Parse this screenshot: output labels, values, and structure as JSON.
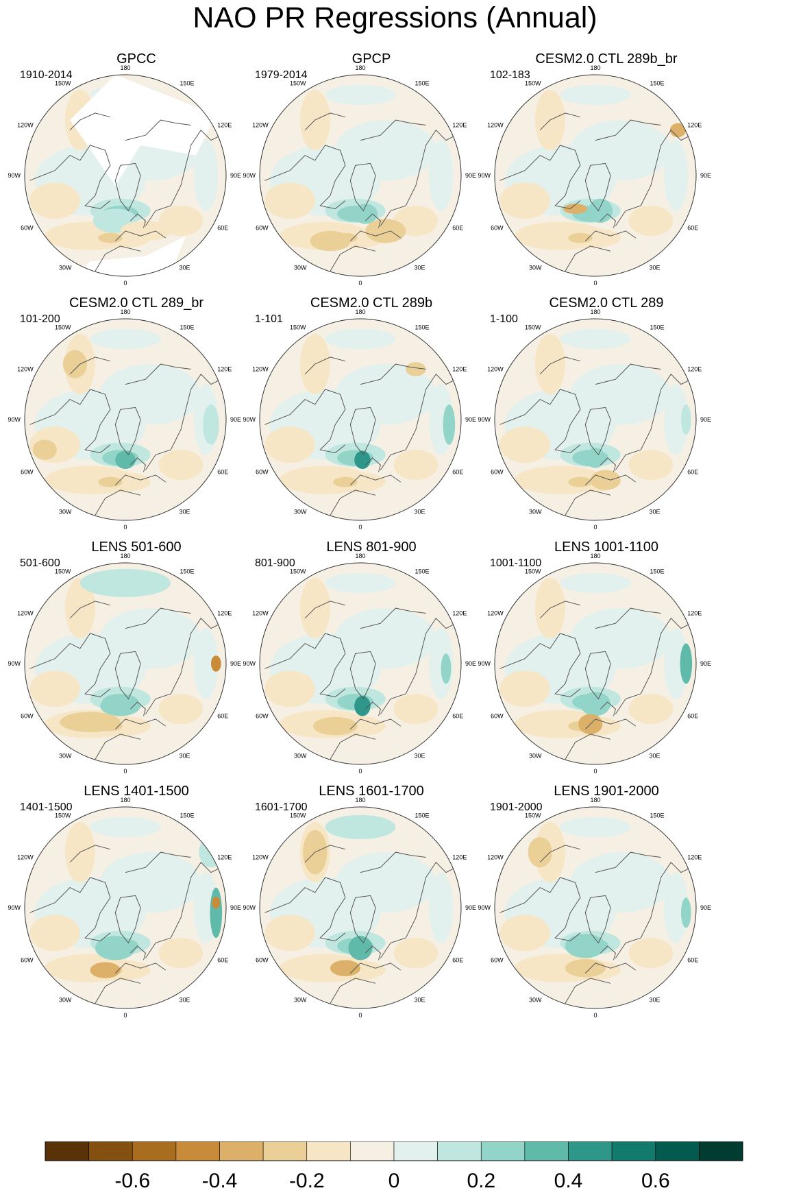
{
  "title": "NAO PR Regressions (Annual)",
  "panels": [
    {
      "title": "GPCC",
      "years": "1910-2014",
      "masked": true
    },
    {
      "title": "GPCP",
      "years": "1979-2014",
      "masked": false
    },
    {
      "title": "CESM2.0 CTL 289b_br",
      "years": "102-183",
      "masked": false
    },
    {
      "title": "CESM2.0 CTL 289_br",
      "years": "101-200",
      "masked": false
    },
    {
      "title": "CESM2.0 CTL 289b",
      "years": "1-101",
      "masked": false
    },
    {
      "title": "CESM2.0 CTL 289",
      "years": "1-100",
      "masked": false
    },
    {
      "title": "LENS 501-600",
      "years": "501-600",
      "masked": false
    },
    {
      "title": "LENS 801-900",
      "years": "801-900",
      "masked": false
    },
    {
      "title": "LENS 1001-1100",
      "years": "1001-1100",
      "masked": false
    },
    {
      "title": "LENS 1401-1500",
      "years": "1401-1500",
      "masked": false
    },
    {
      "title": "LENS 1601-1700",
      "years": "1601-1700",
      "masked": false
    },
    {
      "title": "LENS 1901-2000",
      "years": "1901-2000",
      "masked": false
    }
  ],
  "longitude_labels": {
    "top": "180",
    "top_left": "150W",
    "top_right": "150E",
    "upper_left": "120W",
    "upper_right": "120E",
    "left": "90W",
    "right": "90E",
    "lower_left": "60W",
    "lower_right": "60E",
    "bottom_left": "30W",
    "bottom_right": "30E",
    "bottom": "0"
  },
  "colorbar": {
    "colors": [
      "#5a3208",
      "#83500f",
      "#a86d1f",
      "#c88b3a",
      "#dcb068",
      "#eacf97",
      "#f6e6c6",
      "#f5f0e3",
      "#e3f1ee",
      "#c0e7df",
      "#92d5c8",
      "#5fbaa9",
      "#2f978a",
      "#137a6e",
      "#035b50",
      "#003c30"
    ],
    "tick_labels": [
      "-0.6",
      "-0.4",
      "-0.2",
      "0",
      "0.2",
      "0.4",
      "0.6"
    ]
  },
  "land_color": "#555555",
  "outline_color": "#333333"
}
